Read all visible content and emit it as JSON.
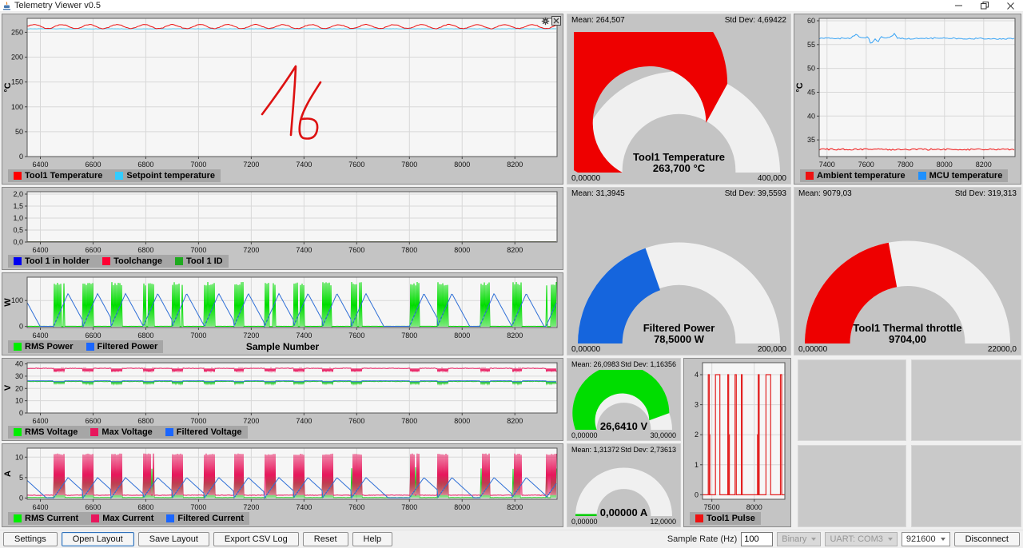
{
  "window": {
    "title": "Telemetry Viewer v0.5"
  },
  "toolbar": {
    "buttons": [
      "Settings",
      "Open Layout",
      "Save Layout",
      "Export CSV Log",
      "Reset",
      "Help"
    ],
    "sample_rate_label": "Sample Rate (Hz)",
    "sample_rate_value": "100",
    "mode_select": "Binary",
    "port_select": "UART: COM3",
    "baud_select": "921600",
    "disconnect_label": "Disconnect"
  },
  "gauges": {
    "tool1_temperature": {
      "mean": "Mean: 264,507",
      "std": "Std Dev: 4,69422",
      "title": "Tool1 Temperature",
      "value": "263,700 °C",
      "min": "0,00000",
      "max": "400,000",
      "fraction": 0.659,
      "color": "#ee0000",
      "track": "#f0f0f0"
    },
    "filtered_power": {
      "mean": "Mean: 31,3945",
      "std": "Std Dev: 39,5593",
      "title": "Filtered Power",
      "value": "78,5000 W",
      "min": "0,00000",
      "max": "200,000",
      "fraction": 0.3925,
      "color": "#1565dd",
      "track": "#f0f0f0"
    },
    "voltage": {
      "mean": "Mean: 26,0983",
      "std": "Std Dev: 1,16356",
      "value": "26,6410 V",
      "min": "0,00000",
      "max": "30,0000",
      "fraction": 0.888,
      "color": "#00dd00",
      "track": "#f0f0f0"
    },
    "current": {
      "mean": "Mean: 1,31372",
      "std": "Std Dev: 2,73613",
      "value": "0,00000 A",
      "min": "0,00000",
      "max": "12,0000",
      "fraction": 0,
      "color": "#00cc00",
      "track": "#f0f0f0",
      "start_marker": true
    },
    "thermal_throttle": {
      "mean": "Mean: 9079,03",
      "std": "Std Dev: 319,313",
      "title": "Tool1 Thermal throttle",
      "value": "9704,00",
      "min": "0,00000",
      "max": "22000,0",
      "fraction": 0.441,
      "color": "#ee0000",
      "track": "#f0f0f0"
    }
  },
  "chart_data": [
    {
      "id": "c1",
      "type": "line",
      "title": "Tool1 Temperature vs Setpoint",
      "xlim": [
        6350,
        8360
      ],
      "ylim": [
        0,
        278
      ],
      "xticks": [
        6400,
        6600,
        6800,
        7000,
        7200,
        7400,
        7600,
        7800,
        8000,
        8200
      ],
      "yticks": {
        "values": [
          0,
          50,
          100,
          150,
          200,
          250
        ],
        "labels": [
          "0",
          "50",
          "100",
          "150",
          "200",
          "250"
        ]
      },
      "ylabel": "°C",
      "series": [
        {
          "name": "Setpoint temperature",
          "color": "#55c8f0",
          "kind": "flat",
          "value": 257,
          "noise": 0.3,
          "seed": 2
        },
        {
          "name": "Tool1 Temperature",
          "color": "#ee1111",
          "kind": "sine",
          "base": 261.5,
          "amp": 4,
          "period": 105,
          "noise": 1.4,
          "seed": 1
        }
      ],
      "legend": [
        {
          "label": "Tool1 Temperature",
          "color": "#ff0000"
        },
        {
          "label": "Setpoint temperature",
          "color": "#33ccff"
        }
      ],
      "annotation": {
        "color": "#dd1111",
        "paths": [
          "M324,124 C336,108 352,86 366,64 C365,92 362,124 360,150",
          "M397,84 C388,98 376,116 372,132 C370,142 370,152 376,154 C386,156 392,152 393,142 C394,132 388,128 374,130"
        ]
      }
    },
    {
      "id": "c2",
      "type": "line",
      "title": "Tool state digital signals",
      "xlim": [
        6350,
        8360
      ],
      "ylim": [
        0,
        2.1
      ],
      "xticks": [
        6400,
        6600,
        6800,
        7000,
        7200,
        7400,
        7600,
        7800,
        8000,
        8200
      ],
      "yticks": {
        "values": [
          0,
          0.5,
          1,
          1.5,
          2
        ],
        "labels": [
          "0,0",
          "0,5",
          "1,0",
          "1,5",
          "2,0"
        ]
      },
      "ylabel": "",
      "series": [
        {
          "name": "Tool 1 in holder",
          "color": "#0000f0",
          "kind": "flat",
          "value": 0.01,
          "noise": 0,
          "seed": 3
        },
        {
          "name": "Toolchange",
          "color": "#ff0033",
          "kind": "flat",
          "value": 0.01,
          "noise": 0,
          "seed": 4
        },
        {
          "name": "Tool 1 ID",
          "color": "#1faa1f",
          "kind": "flat",
          "value": 0.01,
          "noise": 0,
          "seed": 5
        }
      ],
      "legend": [
        {
          "label": "Tool 1 in holder",
          "color": "#0000f0"
        },
        {
          "label": "Toolchange",
          "color": "#ff0033"
        },
        {
          "label": "Tool 1 ID",
          "color": "#1faa1f"
        }
      ]
    },
    {
      "id": "c3",
      "type": "line",
      "title": "Power",
      "xlim": [
        6350,
        8360
      ],
      "ylim": [
        -4,
        190
      ],
      "xticks": [
        6400,
        6600,
        6800,
        7000,
        7200,
        7400,
        7600,
        7800,
        8000,
        8200
      ],
      "yticks": {
        "values": [
          0,
          100
        ],
        "labels": [
          "0",
          "100"
        ]
      },
      "ylabel": "W",
      "xlabel": "Sample Number",
      "clusters": [
        6450,
        6562,
        6668,
        6790,
        6900,
        7022,
        7134,
        7250,
        7360,
        7470,
        7580,
        7800,
        7906,
        8066,
        8188,
        8318
      ],
      "clusterWidth": 40,
      "series": [
        {
          "name": "RMS Power",
          "color": "#00dd00",
          "kind": "comb",
          "hi": 172,
          "jitter": 14,
          "lo": 0,
          "baseline": 0.8,
          "seed": 6
        },
        {
          "name": "Filtered Power",
          "color": "#2f6fd6",
          "kind": "ramps",
          "peak": 127,
          "riseLen": 55,
          "fallLen": 68,
          "baseline": 0.5,
          "initial": 92,
          "seed": 7
        }
      ],
      "legend": [
        {
          "label": "RMS Power",
          "color": "#00ee00"
        },
        {
          "label": "Filtered Power",
          "color": "#1a66ff"
        }
      ]
    },
    {
      "id": "c4",
      "type": "line",
      "title": "Voltage",
      "xlim": [
        6350,
        8360
      ],
      "ylim": [
        0,
        41
      ],
      "xticks": [
        6400,
        6600,
        6800,
        7000,
        7200,
        7400,
        7600,
        7800,
        8000,
        8200
      ],
      "yticks": {
        "values": [
          0,
          10,
          20,
          30,
          40
        ],
        "labels": [
          "0",
          "10",
          "20",
          "30",
          "40"
        ]
      },
      "ylabel": "V",
      "clusters": [
        6450,
        6562,
        6668,
        6790,
        6900,
        7022,
        7134,
        7250,
        7360,
        7470,
        7580,
        7800,
        7906,
        8066,
        8188,
        8318
      ],
      "clusterWidth": 40,
      "series": [
        {
          "name": "RMS Voltage",
          "color": "#22cc22",
          "kind": "dips",
          "base": 25.7,
          "dip": 23.7,
          "noise": 0.3,
          "comb": true,
          "seed": 8
        },
        {
          "name": "Max Voltage",
          "color": "#e8175d",
          "kind": "dips",
          "base": 36.4,
          "dip": 33.7,
          "noise": 0.4,
          "comb": true,
          "seed": 9
        },
        {
          "name": "Filtered Voltage",
          "color": "#2f6fd6",
          "kind": "dips",
          "base": 26.25,
          "dip": 25.55,
          "noise": 0.1,
          "comb": false,
          "seed": 10
        }
      ],
      "legend": [
        {
          "label": "RMS Voltage",
          "color": "#00ee00"
        },
        {
          "label": "Max Voltage",
          "color": "#e8175d"
        },
        {
          "label": "Filtered Voltage",
          "color": "#1a66ff"
        }
      ]
    },
    {
      "id": "c5",
      "type": "line",
      "title": "Current",
      "xlim": [
        6350,
        8360
      ],
      "ylim": [
        -0.3,
        12.2
      ],
      "xticks": [
        6400,
        6600,
        6800,
        7000,
        7200,
        7400,
        7600,
        7800,
        8000,
        8200
      ],
      "yticks": {
        "values": [
          0,
          5,
          10
        ],
        "labels": [
          "0",
          "5",
          "10"
        ]
      },
      "ylabel": "A",
      "clusters": [
        6450,
        6562,
        6668,
        6790,
        6900,
        7022,
        7134,
        7250,
        7360,
        7470,
        7580,
        7800,
        7906,
        8066,
        8188,
        8318
      ],
      "clusterWidth": 40,
      "series": [
        {
          "name": "RMS Current",
          "color": "#22cc22",
          "kind": "comb",
          "hi": 7.6,
          "jitter": 0.5,
          "lo": 0.1,
          "baseline": 0.12,
          "noiseBase": 0.06,
          "seed": 11
        },
        {
          "name": "Max Current",
          "color": "#e8175d",
          "kind": "comb",
          "hi": 10.9,
          "jitter": 0.35,
          "lo": 0.7,
          "baseline": 0.7,
          "noiseBase": 0.12,
          "seed": 12
        },
        {
          "name": "Filtered Current",
          "color": "#2f6fd6",
          "kind": "ramps",
          "peak": 5.0,
          "riseLen": 55,
          "fallLen": 85,
          "baseline": 0.08,
          "initial": 4.3,
          "seed": 13
        }
      ],
      "legend": [
        {
          "label": "RMS Current",
          "color": "#00ee00"
        },
        {
          "label": "Max Current",
          "color": "#e8175d"
        },
        {
          "label": "Filtered Current",
          "color": "#1a66ff"
        }
      ]
    },
    {
      "id": "pulse",
      "type": "line",
      "title": "Tool1 Pulse",
      "xlim": [
        7390,
        8360
      ],
      "ylim": [
        -0.15,
        4.4
      ],
      "ml": 22,
      "xticks": [
        7500,
        8000
      ],
      "yticks": {
        "values": [
          0,
          1,
          2,
          3,
          4
        ],
        "labels": [
          "0",
          "1",
          "2",
          "3",
          "4"
        ]
      },
      "ylabel": "",
      "series": [
        {
          "name": "Tool1 Pulse",
          "color": "#e32222",
          "kind": "steps",
          "lw": 1.2,
          "points": [
            [
              7390,
              0
            ],
            [
              7458,
              0
            ],
            [
              7458,
              4
            ],
            [
              7470,
              4
            ],
            [
              7470,
              0
            ],
            [
              7474,
              0
            ],
            [
              7474,
              2
            ],
            [
              7477,
              2
            ],
            [
              7477,
              0
            ],
            [
              7543,
              0
            ],
            [
              7543,
              4
            ],
            [
              7594,
              4
            ],
            [
              7594,
              0
            ],
            [
              7688,
              0
            ],
            [
              7688,
              4
            ],
            [
              7698,
              4
            ],
            [
              7698,
              0
            ],
            [
              7703,
              0
            ],
            [
              7703,
              2
            ],
            [
              7706,
              2
            ],
            [
              7706,
              0
            ],
            [
              7773,
              0
            ],
            [
              7773,
              4
            ],
            [
              7788,
              4
            ],
            [
              7788,
              0
            ],
            [
              7848,
              0
            ],
            [
              7848,
              4
            ],
            [
              7857,
              4
            ],
            [
              7857,
              0
            ],
            [
              8038,
              0
            ],
            [
              8038,
              2
            ],
            [
              8042,
              2
            ],
            [
              8042,
              0
            ],
            [
              8046,
              0
            ],
            [
              8046,
              4
            ],
            [
              8058,
              4
            ],
            [
              8058,
              0
            ],
            [
              8138,
              0
            ],
            [
              8138,
              4
            ],
            [
              8193,
              4
            ],
            [
              8193,
              0
            ],
            [
              8308,
              0
            ],
            [
              8308,
              4
            ],
            [
              8323,
              4
            ],
            [
              8323,
              0
            ],
            [
              8360,
              0
            ]
          ]
        }
      ],
      "legend": [
        {
          "label": "Tool1 Pulse",
          "color": "#ee1111"
        }
      ]
    },
    {
      "id": "ambient",
      "type": "line",
      "title": "Ambient vs MCU temperature",
      "xlim": [
        7360,
        8360
      ],
      "ylim": [
        31.5,
        60.5
      ],
      "xticks": [
        7400,
        7600,
        7800,
        8000,
        8200
      ],
      "yticks": {
        "values": [
          35,
          40,
          45,
          50,
          55,
          60
        ],
        "labels": [
          "35",
          "40",
          "45",
          "50",
          "55",
          "60"
        ]
      },
      "ylabel": "°C",
      "series": [
        {
          "name": "Ambient temperature",
          "color": "#ee1111",
          "kind": "flat",
          "value": 33,
          "noise": 0.18,
          "seed": 14
        },
        {
          "name": "MCU temperature",
          "color": "#36a3f5",
          "kind": "path",
          "noise": 0.15,
          "seed": 15,
          "anchors": [
            [
              7360,
              56.3
            ],
            [
              7520,
              56.3
            ],
            [
              7550,
              57.2
            ],
            [
              7570,
              56.4
            ],
            [
              7610,
              56.6
            ],
            [
              7625,
              55.0
            ],
            [
              7645,
              56.3
            ],
            [
              7660,
              55.6
            ],
            [
              7680,
              56.7
            ],
            [
              7700,
              56.2
            ],
            [
              7730,
              56.8
            ],
            [
              7745,
              57.4
            ],
            [
              7760,
              56.4
            ],
            [
              7800,
              56.2
            ],
            [
              8000,
              56.4
            ],
            [
              8100,
              56.2
            ],
            [
              8200,
              56.3
            ],
            [
              8360,
              56.2
            ]
          ]
        }
      ],
      "legend": [
        {
          "label": "Ambient temperature",
          "color": "#ee1111"
        },
        {
          "label": "MCU temperature",
          "color": "#1e90ff"
        }
      ]
    }
  ]
}
